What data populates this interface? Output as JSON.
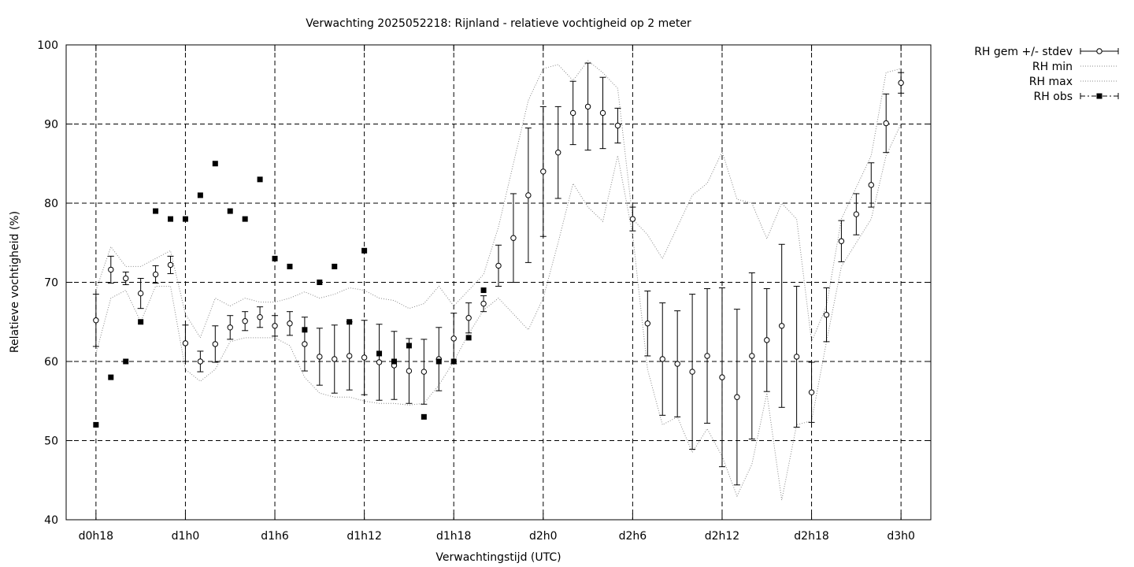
{
  "chart_data": {
    "type": "line",
    "title": "Verwachting 2025052218: Rijnland - relatieve vochtigheid op 2 meter",
    "xlabel": "Verwachtingstijd (UTC)",
    "ylabel": "Relatieve vochtigheid (%)",
    "ylim": [
      40,
      100
    ],
    "xlim": [
      16,
      74
    ],
    "x_unit": "forecast hour",
    "yticks": [
      40,
      50,
      60,
      70,
      80,
      90,
      100
    ],
    "xticks": [
      {
        "x": 18,
        "label": "d0h18"
      },
      {
        "x": 24,
        "label": "d1h0"
      },
      {
        "x": 30,
        "label": "d1h6"
      },
      {
        "x": 36,
        "label": "d1h12"
      },
      {
        "x": 42,
        "label": "d1h18"
      },
      {
        "x": 48,
        "label": "d2h0"
      },
      {
        "x": 54,
        "label": "d2h6"
      },
      {
        "x": 60,
        "label": "d2h12"
      },
      {
        "x": 66,
        "label": "d2h18"
      },
      {
        "x": 72,
        "label": "d3h0"
      }
    ],
    "grid": true,
    "legend_position": "top-right outside",
    "legend": [
      {
        "key": "mean",
        "label": "RH gem +/- stdev"
      },
      {
        "key": "min",
        "label": "RH min"
      },
      {
        "key": "max",
        "label": "RH max"
      },
      {
        "key": "obs",
        "label": "RH obs"
      }
    ],
    "series": [
      {
        "name": "RH gem +/- stdev",
        "style": "errorbar",
        "x": [
          18,
          19,
          20,
          21,
          22,
          23,
          24,
          25,
          26,
          27,
          28,
          29,
          30,
          31,
          32,
          33,
          34,
          35,
          36,
          37,
          38,
          39,
          40,
          41,
          42,
          43,
          44,
          45,
          46,
          47,
          48,
          49,
          50,
          51,
          52,
          53,
          54,
          55,
          56,
          57,
          58,
          59,
          60,
          61,
          62,
          63,
          64,
          65,
          66,
          67,
          68,
          69,
          70,
          71,
          72
        ],
        "values": [
          65.2,
          71.6,
          70.5,
          68.6,
          71.0,
          72.2,
          62.3,
          60.0,
          62.2,
          64.3,
          65.1,
          65.6,
          64.5,
          64.8,
          62.2,
          60.6,
          60.3,
          60.7,
          60.5,
          59.9,
          59.5,
          58.8,
          58.7,
          60.3,
          62.9,
          65.5,
          67.3,
          72.1,
          75.6,
          81.0,
          84.0,
          86.4,
          91.4,
          92.2,
          91.4,
          89.8,
          78.0,
          64.8,
          60.3,
          59.7,
          58.7,
          60.7,
          58.0,
          55.5,
          60.7,
          62.7,
          64.5,
          60.6,
          56.1,
          65.9,
          75.2,
          78.6,
          82.3,
          90.1,
          95.2
        ],
        "stdev": [
          3.3,
          1.7,
          0.8,
          1.9,
          1.1,
          1.1,
          2.3,
          1.3,
          2.3,
          1.5,
          1.2,
          1.3,
          1.3,
          1.5,
          3.4,
          3.6,
          4.3,
          4.3,
          4.7,
          4.8,
          4.3,
          4.1,
          4.1,
          4.0,
          3.2,
          1.9,
          1.0,
          2.6,
          5.6,
          8.5,
          8.2,
          5.8,
          4.0,
          5.5,
          4.5,
          2.2,
          1.5,
          4.1,
          7.1,
          6.7,
          9.8,
          8.5,
          11.3,
          11.1,
          10.5,
          6.5,
          10.3,
          8.9,
          3.8,
          3.4,
          2.6,
          2.6,
          2.8,
          3.7,
          1.3
        ]
      },
      {
        "name": "RH min",
        "style": "dotted",
        "x": [
          18,
          19,
          20,
          21,
          22,
          23,
          24,
          25,
          26,
          27,
          28,
          29,
          30,
          31,
          32,
          33,
          34,
          35,
          36,
          37,
          38,
          39,
          40,
          41,
          42,
          43,
          44,
          45,
          46,
          47,
          48,
          49,
          50,
          51,
          52,
          53,
          54,
          55,
          56,
          57,
          58,
          59,
          60,
          61,
          62,
          63,
          64,
          65,
          66,
          67,
          68,
          69,
          70,
          71,
          72
        ],
        "values": [
          61.0,
          68.0,
          69.0,
          65.0,
          69.5,
          69.5,
          59.0,
          57.5,
          59.0,
          62.5,
          63.0,
          63.0,
          63.0,
          62.0,
          58.0,
          56.0,
          55.5,
          55.5,
          55.0,
          54.7,
          54.7,
          54.5,
          54.7,
          57.0,
          60.0,
          63.5,
          66.5,
          68.0,
          66.0,
          64.0,
          68.0,
          75.0,
          82.5,
          79.5,
          77.7,
          86.0,
          76.0,
          59.0,
          52.0,
          53.0,
          48.5,
          51.5,
          48.0,
          43.0,
          47.0,
          56.0,
          42.5,
          52.0,
          52.5,
          62.5,
          72.0,
          75.0,
          78.0,
          86.0,
          90.0
        ]
      },
      {
        "name": "RH max",
        "style": "dotted",
        "x": [
          18,
          19,
          20,
          21,
          22,
          23,
          24,
          25,
          26,
          27,
          28,
          29,
          30,
          31,
          32,
          33,
          34,
          35,
          36,
          37,
          38,
          39,
          40,
          41,
          42,
          43,
          44,
          45,
          46,
          47,
          48,
          49,
          50,
          51,
          52,
          53,
          54,
          55,
          56,
          57,
          58,
          59,
          60,
          61,
          62,
          63,
          64,
          65,
          66,
          67,
          68,
          69,
          70,
          71,
          72
        ],
        "values": [
          69.0,
          74.5,
          72.0,
          72.0,
          73.0,
          74.0,
          66.0,
          63.0,
          68.0,
          67.0,
          68.0,
          67.5,
          67.5,
          68.0,
          68.8,
          68.0,
          68.5,
          69.3,
          69.0,
          68.0,
          67.7,
          66.7,
          67.3,
          69.5,
          67.0,
          69.0,
          71.0,
          77.0,
          85.0,
          93.0,
          97.0,
          97.5,
          95.5,
          98.0,
          96.5,
          94.5,
          78.0,
          76.0,
          73.0,
          77.0,
          81.0,
          82.5,
          86.5,
          80.5,
          80.0,
          75.5,
          80.0,
          78.0,
          62.5,
          67.0,
          78.0,
          82.0,
          86.0,
          96.5,
          97.0
        ]
      },
      {
        "name": "RH obs",
        "style": "points",
        "x": [
          18,
          19,
          20,
          21,
          22,
          23,
          24,
          25,
          26,
          27,
          28,
          29,
          30,
          31,
          32,
          33,
          34,
          35,
          36,
          37,
          38,
          39,
          40,
          41,
          42,
          43,
          44
        ],
        "values": [
          52,
          58,
          60,
          65,
          79,
          78,
          78,
          81,
          85,
          79,
          78,
          83,
          73,
          72,
          64,
          70,
          72,
          65,
          74,
          61,
          60,
          62,
          53,
          60,
          60,
          63,
          69
        ]
      }
    ]
  }
}
